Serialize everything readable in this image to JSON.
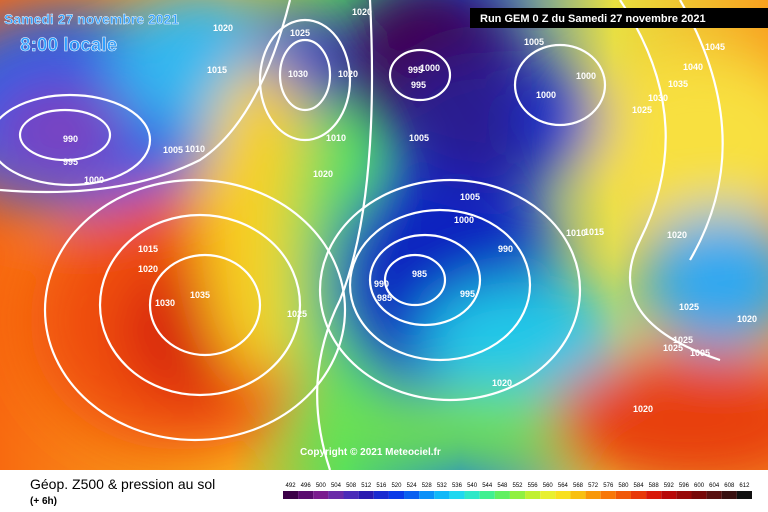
{
  "header": {
    "date": "Samedi 27 novembre 2021",
    "time": "8:00 locale",
    "run": "Run GEM 0 Z du Samedi 27 novembre 2021"
  },
  "copyright": "Copyright © 2021 Meteociel.fr",
  "footer": {
    "title": "Géop. Z500 & pression au sol",
    "lead": "(+ 6h)"
  },
  "isobar_labels": [
    "1020",
    "1025",
    "1020",
    "1015",
    "1030",
    "1020",
    "995",
    "1000",
    "995",
    "1005",
    "1000",
    "1000",
    "1045",
    "1040",
    "1035",
    "1030",
    "1025",
    "990",
    "995",
    "1005",
    "1010",
    "1000",
    "1010",
    "1005",
    "1020",
    "1005",
    "1000",
    "1010",
    "1015",
    "1020",
    "990",
    "985",
    "990",
    "985",
    "995",
    "1015",
    "1020",
    "1030",
    "1035",
    "1025",
    "1025",
    "1020",
    "1025",
    "1025",
    "1005",
    "1020",
    "1020"
  ],
  "legend": {
    "values": [
      492,
      496,
      500,
      504,
      508,
      512,
      516,
      520,
      524,
      528,
      532,
      536,
      540,
      544,
      548,
      552,
      556,
      560,
      564,
      568,
      572,
      576,
      580,
      584,
      588,
      592,
      596,
      600,
      604,
      608,
      612
    ],
    "colors": [
      "#3c0048",
      "#5a0a6e",
      "#7a1a8e",
      "#6a2aa8",
      "#4a2ab8",
      "#2a1ab0",
      "#1a2ad0",
      "#0a3ae8",
      "#0a60f0",
      "#0a90f8",
      "#10b8f8",
      "#20d8f0",
      "#30e8c8",
      "#40f090",
      "#60f060",
      "#90f040",
      "#c0f030",
      "#e8f030",
      "#f8e020",
      "#f8c010",
      "#f89808",
      "#f87808",
      "#f05808",
      "#e83808",
      "#d81808",
      "#b80808",
      "#980808",
      "#780808",
      "#581010",
      "#381010",
      "#101010"
    ]
  }
}
